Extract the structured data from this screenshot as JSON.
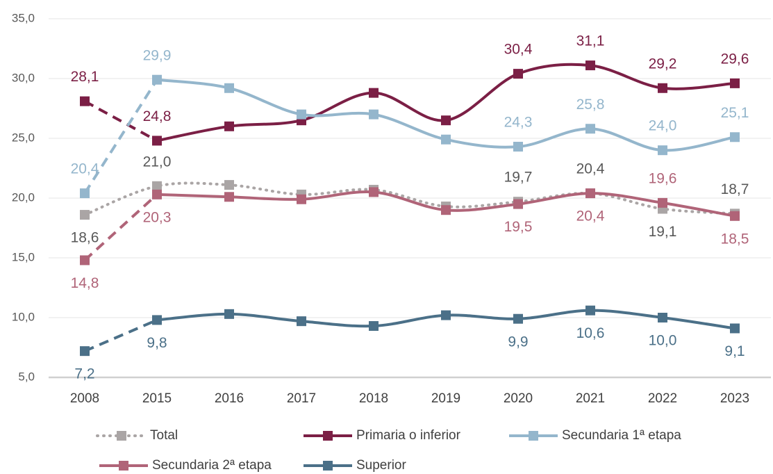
{
  "chart_data": {
    "type": "line",
    "categories": [
      "2008",
      "2015",
      "2016",
      "2017",
      "2018",
      "2019",
      "2020",
      "2021",
      "2022",
      "2023"
    ],
    "ylim": [
      5,
      35
    ],
    "yticks": [
      {
        "value": 5,
        "label": "5,0"
      },
      {
        "value": 10,
        "label": "10,0"
      },
      {
        "value": 15,
        "label": "15,0"
      },
      {
        "value": 20,
        "label": "20,0"
      },
      {
        "value": 25,
        "label": "25,0"
      },
      {
        "value": 30,
        "label": "30,0"
      },
      {
        "value": 35,
        "label": "35,0"
      }
    ],
    "grid": true,
    "legend": "bottom",
    "series": [
      {
        "name": "Total",
        "color": "#aaa5a5",
        "style": "dotted",
        "values": [
          18.6,
          21.0,
          21.1,
          20.3,
          20.7,
          19.3,
          19.7,
          20.4,
          19.1,
          18.7
        ],
        "value_labels": [
          "18,6",
          "21,0",
          null,
          null,
          null,
          null,
          "19,7",
          "20,4",
          "19,1",
          "18,7"
        ]
      },
      {
        "name": "Primaria o inferior",
        "color": "#7b1f45",
        "values": [
          28.1,
          24.8,
          26.0,
          26.5,
          28.8,
          26.5,
          30.4,
          31.1,
          29.2,
          29.6
        ],
        "value_labels": [
          "28,1",
          "24,8",
          null,
          null,
          null,
          null,
          "30,4",
          "31,1",
          "29,2",
          "29,6"
        ]
      },
      {
        "name": "Secundaria 1ª etapa",
        "color": "#94b6cc",
        "values": [
          20.4,
          29.9,
          29.2,
          27.0,
          27.0,
          24.9,
          24.3,
          25.8,
          24.0,
          25.1
        ],
        "value_labels": [
          "20,4",
          "29,9",
          null,
          null,
          null,
          null,
          "24,3",
          "25,8",
          "24,0",
          "25,1"
        ]
      },
      {
        "name": "Secundaria 2ª etapa",
        "color": "#b06478",
        "values": [
          14.8,
          20.3,
          20.1,
          19.9,
          20.5,
          19.0,
          19.5,
          20.4,
          19.6,
          18.5
        ],
        "value_labels": [
          "14,8",
          "20,3",
          null,
          null,
          null,
          null,
          "19,5",
          "20,4",
          "19,6",
          "18,5"
        ]
      },
      {
        "name": "Superior",
        "color": "#4b7088",
        "values": [
          7.2,
          9.8,
          10.3,
          9.7,
          9.3,
          10.2,
          9.9,
          10.6,
          10.0,
          9.1
        ],
        "value_labels": [
          "7,2",
          "9,8",
          null,
          null,
          null,
          null,
          "9,9",
          "10,6",
          "10,0",
          "9,1"
        ]
      }
    ]
  }
}
